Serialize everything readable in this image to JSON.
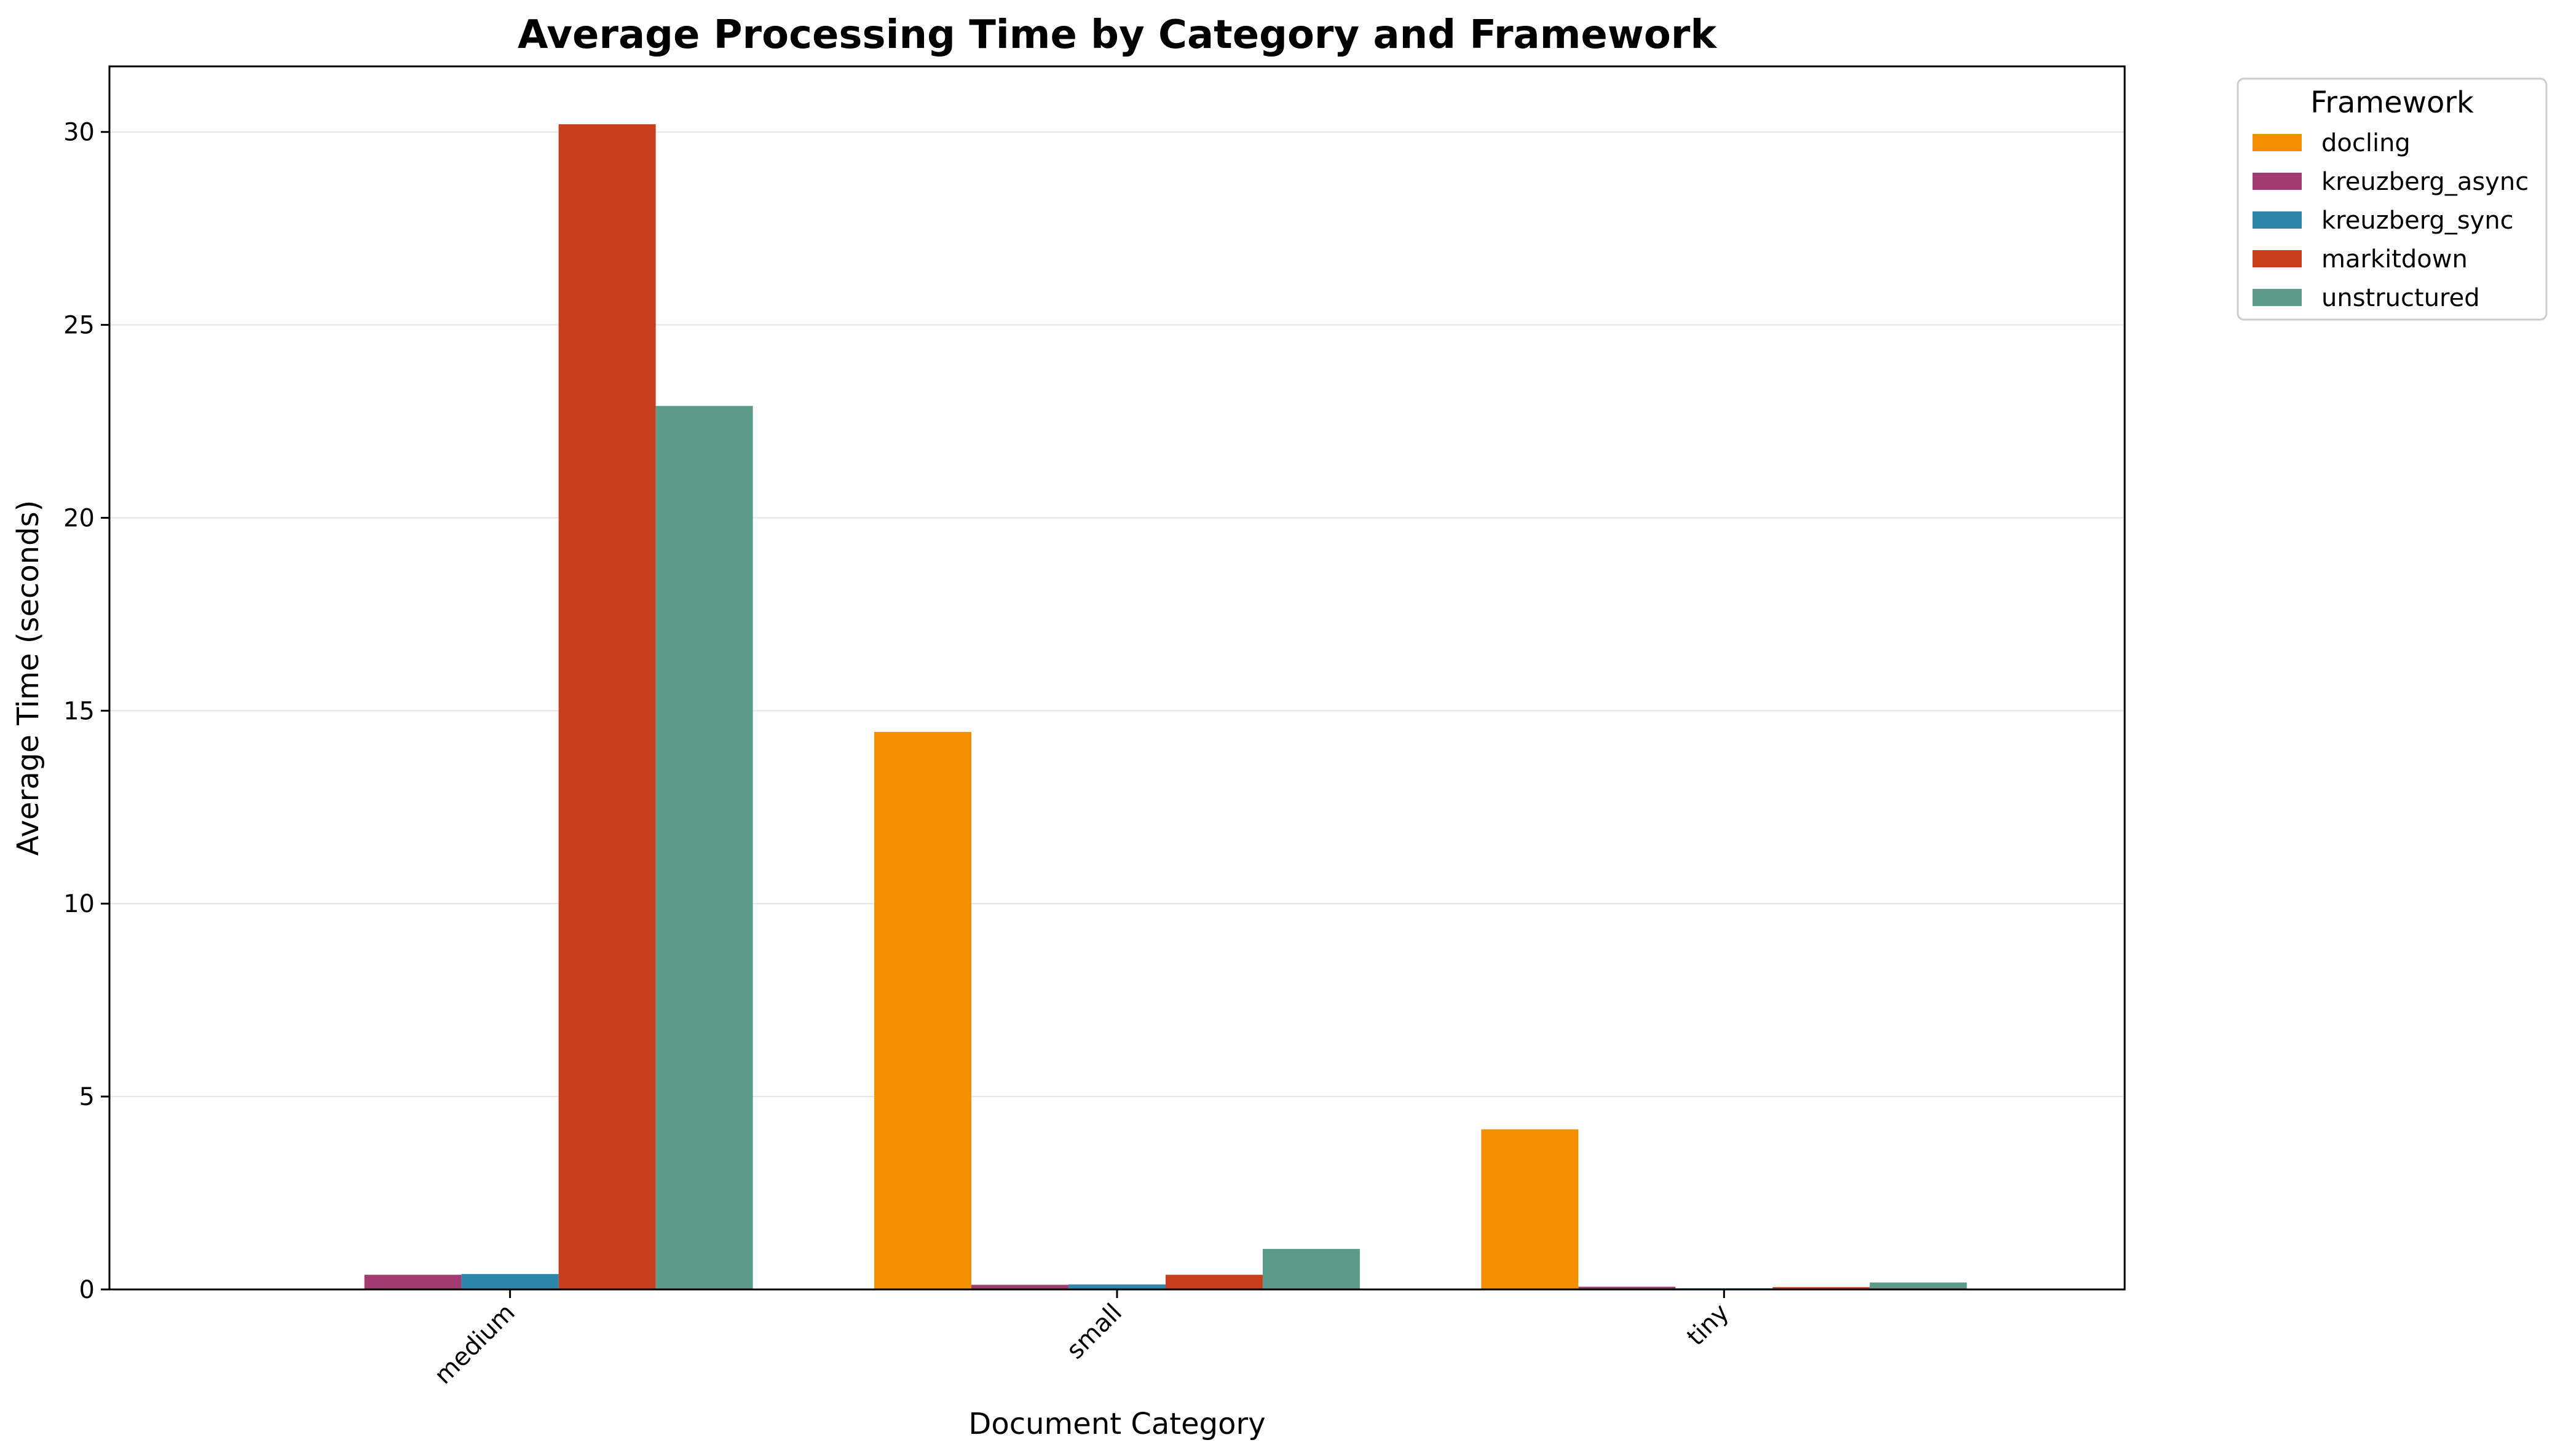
{
  "chart_data": {
    "type": "bar",
    "title": "Average Processing Time by Category and Framework",
    "xlabel": "Document Category",
    "ylabel": "Average Time (seconds)",
    "categories": [
      "medium",
      "small",
      "tiny"
    ],
    "ylim": [
      0,
      31.7
    ],
    "yticks": [
      0,
      5,
      10,
      15,
      20,
      25,
      30
    ],
    "grid": true,
    "legend_title": "Framework",
    "legend_position": "outside-top-right",
    "series": [
      {
        "name": "docling",
        "color": "#F18F01",
        "values": [
          0,
          14.45,
          4.15
        ]
      },
      {
        "name": "kreuzberg_async",
        "color": "#A23B72",
        "values": [
          0.38,
          0.12,
          0.07
        ]
      },
      {
        "name": "kreuzberg_sync",
        "color": "#2E86AB",
        "values": [
          0.4,
          0.13,
          0.03
        ]
      },
      {
        "name": "markitdown",
        "color": "#C73E1D",
        "values": [
          30.2,
          0.38,
          0.06
        ]
      },
      {
        "name": "unstructured",
        "color": "#5C9A8A",
        "values": [
          22.9,
          1.05,
          0.18
        ]
      }
    ]
  }
}
